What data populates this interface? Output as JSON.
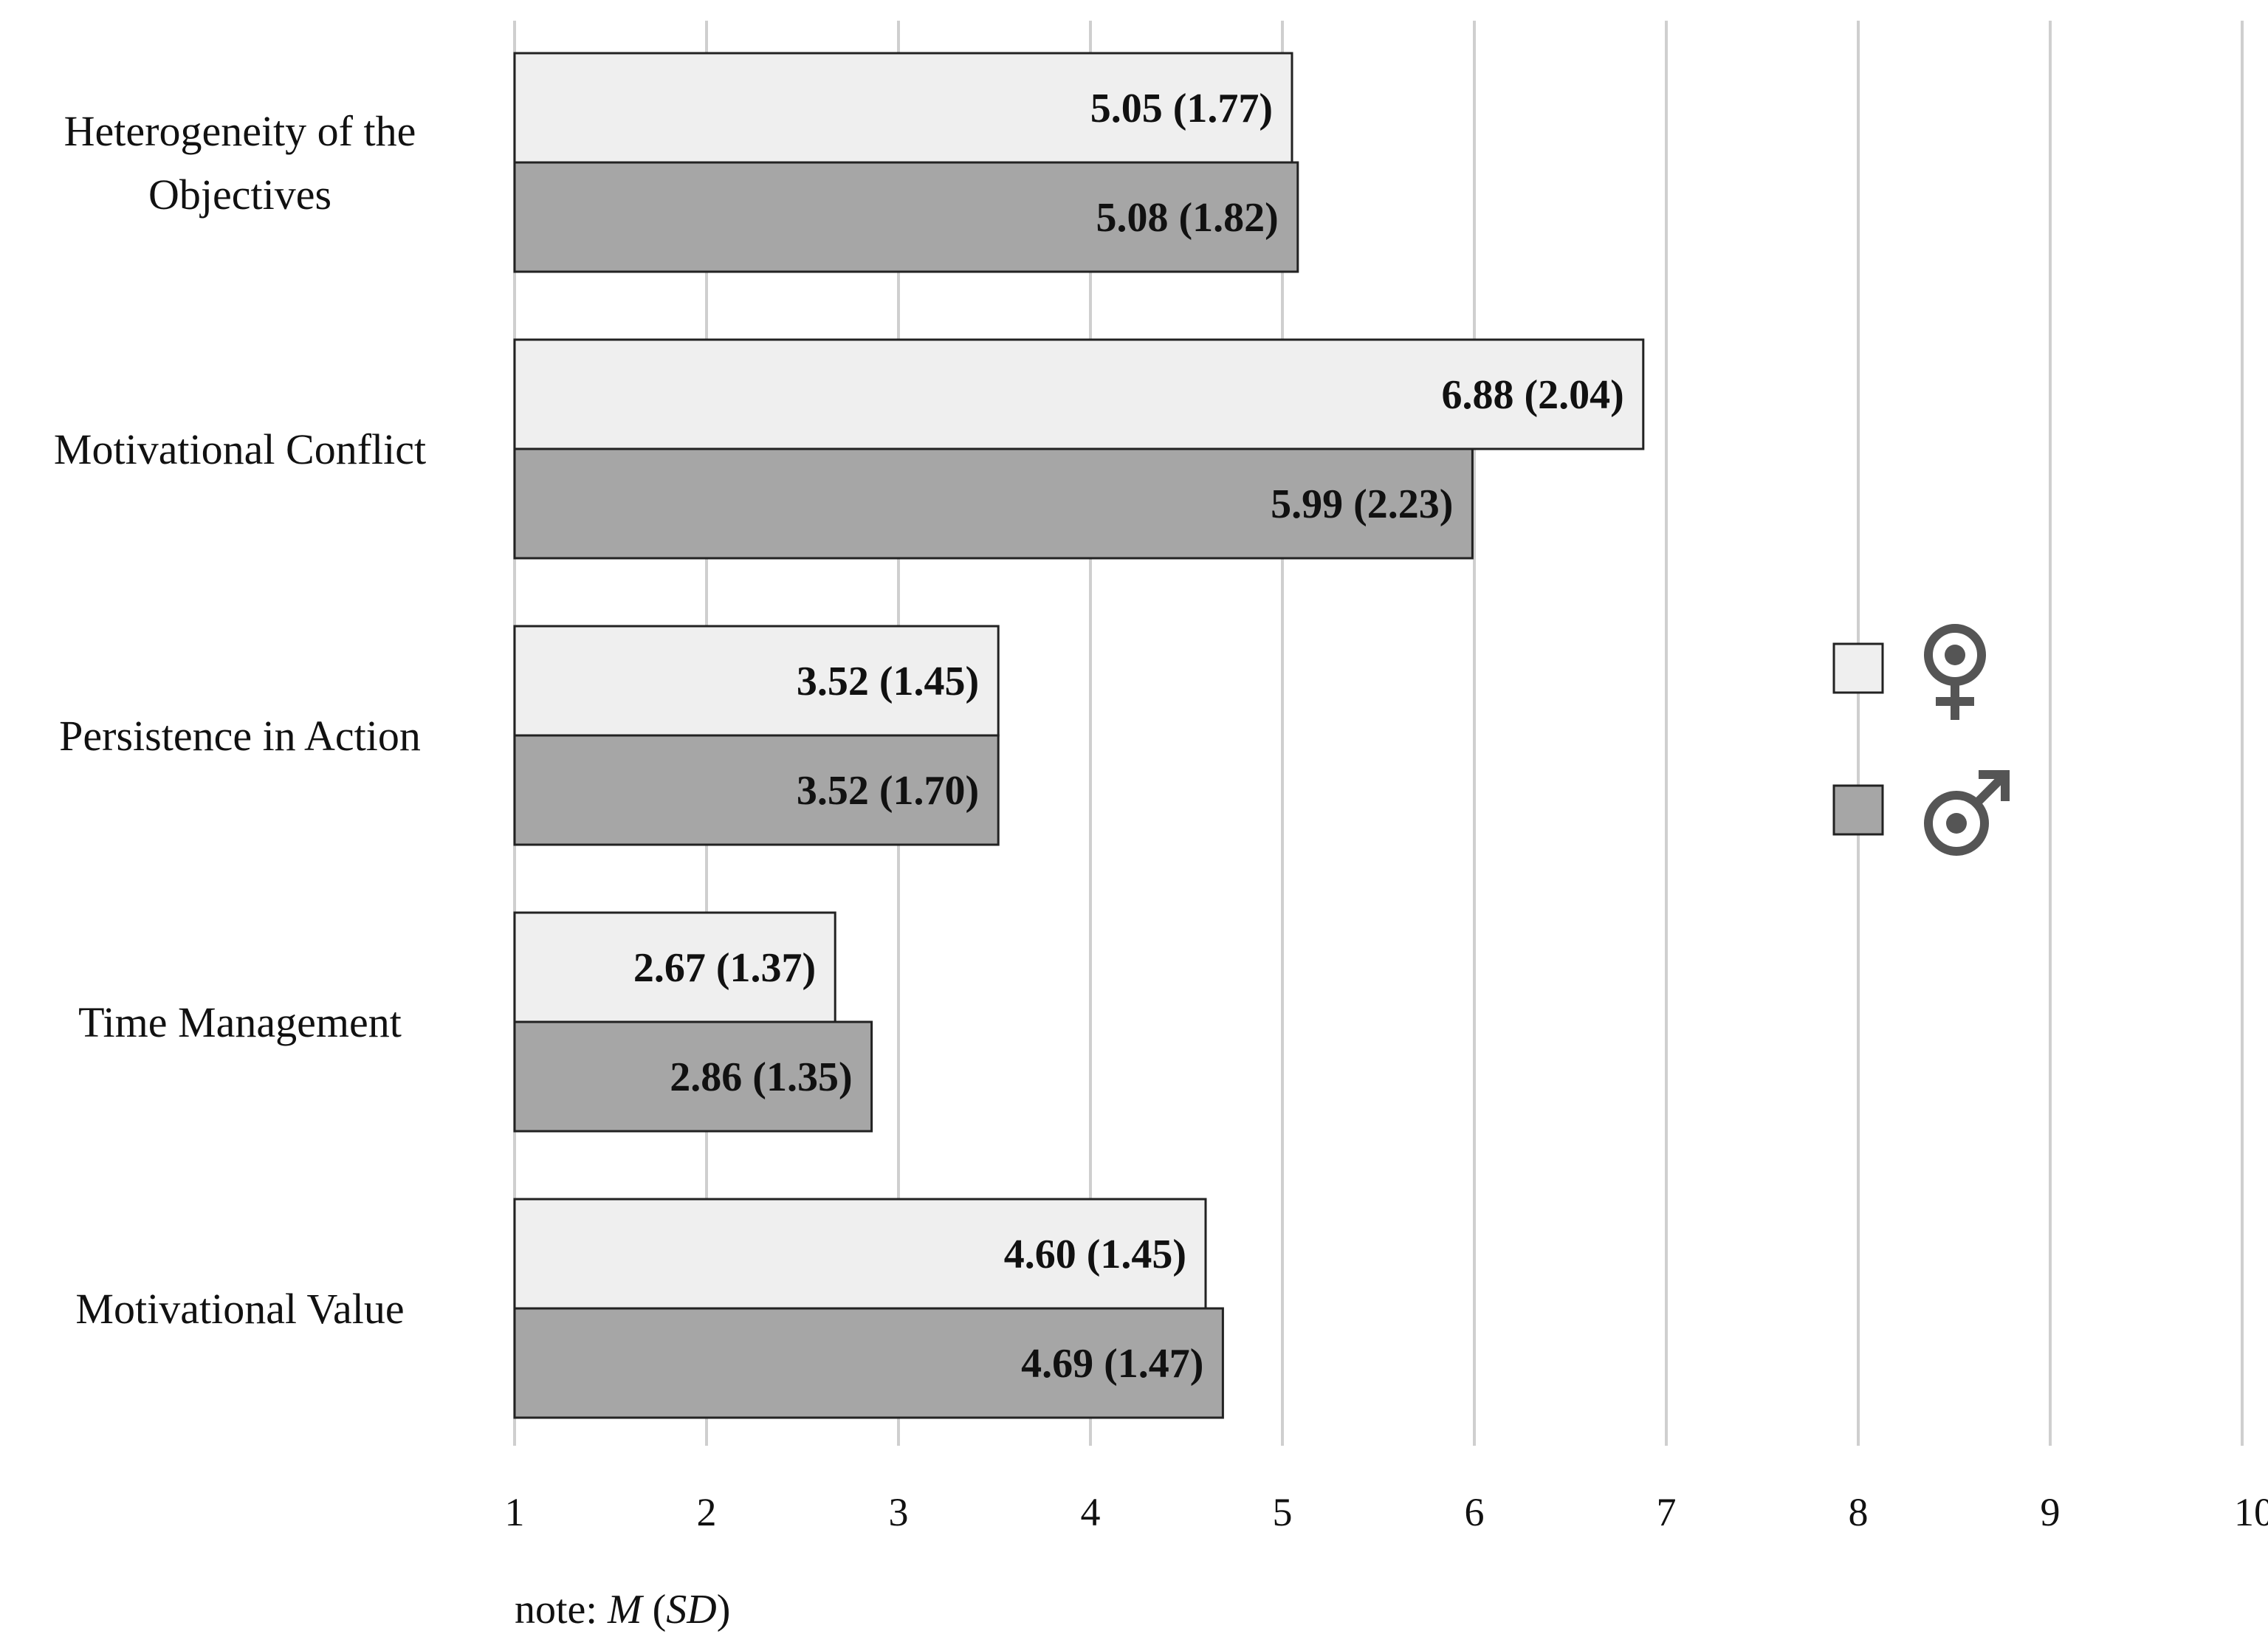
{
  "chart_data": {
    "type": "bar",
    "orientation": "horizontal",
    "categories": [
      "Heterogeneity of the Objectives",
      "Motivational Conflict",
      "Persistence in Action",
      "Time Management",
      "Motivational Value"
    ],
    "category_lines": [
      [
        "Heterogeneity of the",
        "Objectives"
      ],
      [
        "Motivational Conflict"
      ],
      [
        "Persistence in Action"
      ],
      [
        "Time Management"
      ],
      [
        "Motivational Value"
      ]
    ],
    "series": [
      {
        "name": "female (♀)",
        "color": "#efefef",
        "values": [
          5.05,
          6.88,
          3.52,
          2.67,
          4.6
        ],
        "labels": [
          "5.05 (1.77)",
          "6.88 (2.04)",
          "3.52 (1.45)",
          "2.67 (1.37)",
          "4.60 (1.45)"
        ]
      },
      {
        "name": "male (♂)",
        "color": "#a6a6a6",
        "values": [
          5.08,
          5.99,
          3.52,
          2.86,
          4.69
        ],
        "labels": [
          "5.08 (1.82)",
          "5.99 (2.23)",
          "3.52 (1.70)",
          "2.86 (1.35)",
          "4.69 (1.47)"
        ]
      }
    ],
    "xlim": [
      1,
      10
    ],
    "xticks": [
      1,
      2,
      3,
      4,
      5,
      6,
      7,
      8,
      9,
      10
    ],
    "grid": "vertical",
    "legend_position": "right",
    "legend_icons": [
      "female-symbol-icon",
      "male-symbol-icon"
    ],
    "note": {
      "prefix": "note: ",
      "mean": "M",
      "open": " (",
      "sd": "SD",
      "close": ")"
    }
  }
}
